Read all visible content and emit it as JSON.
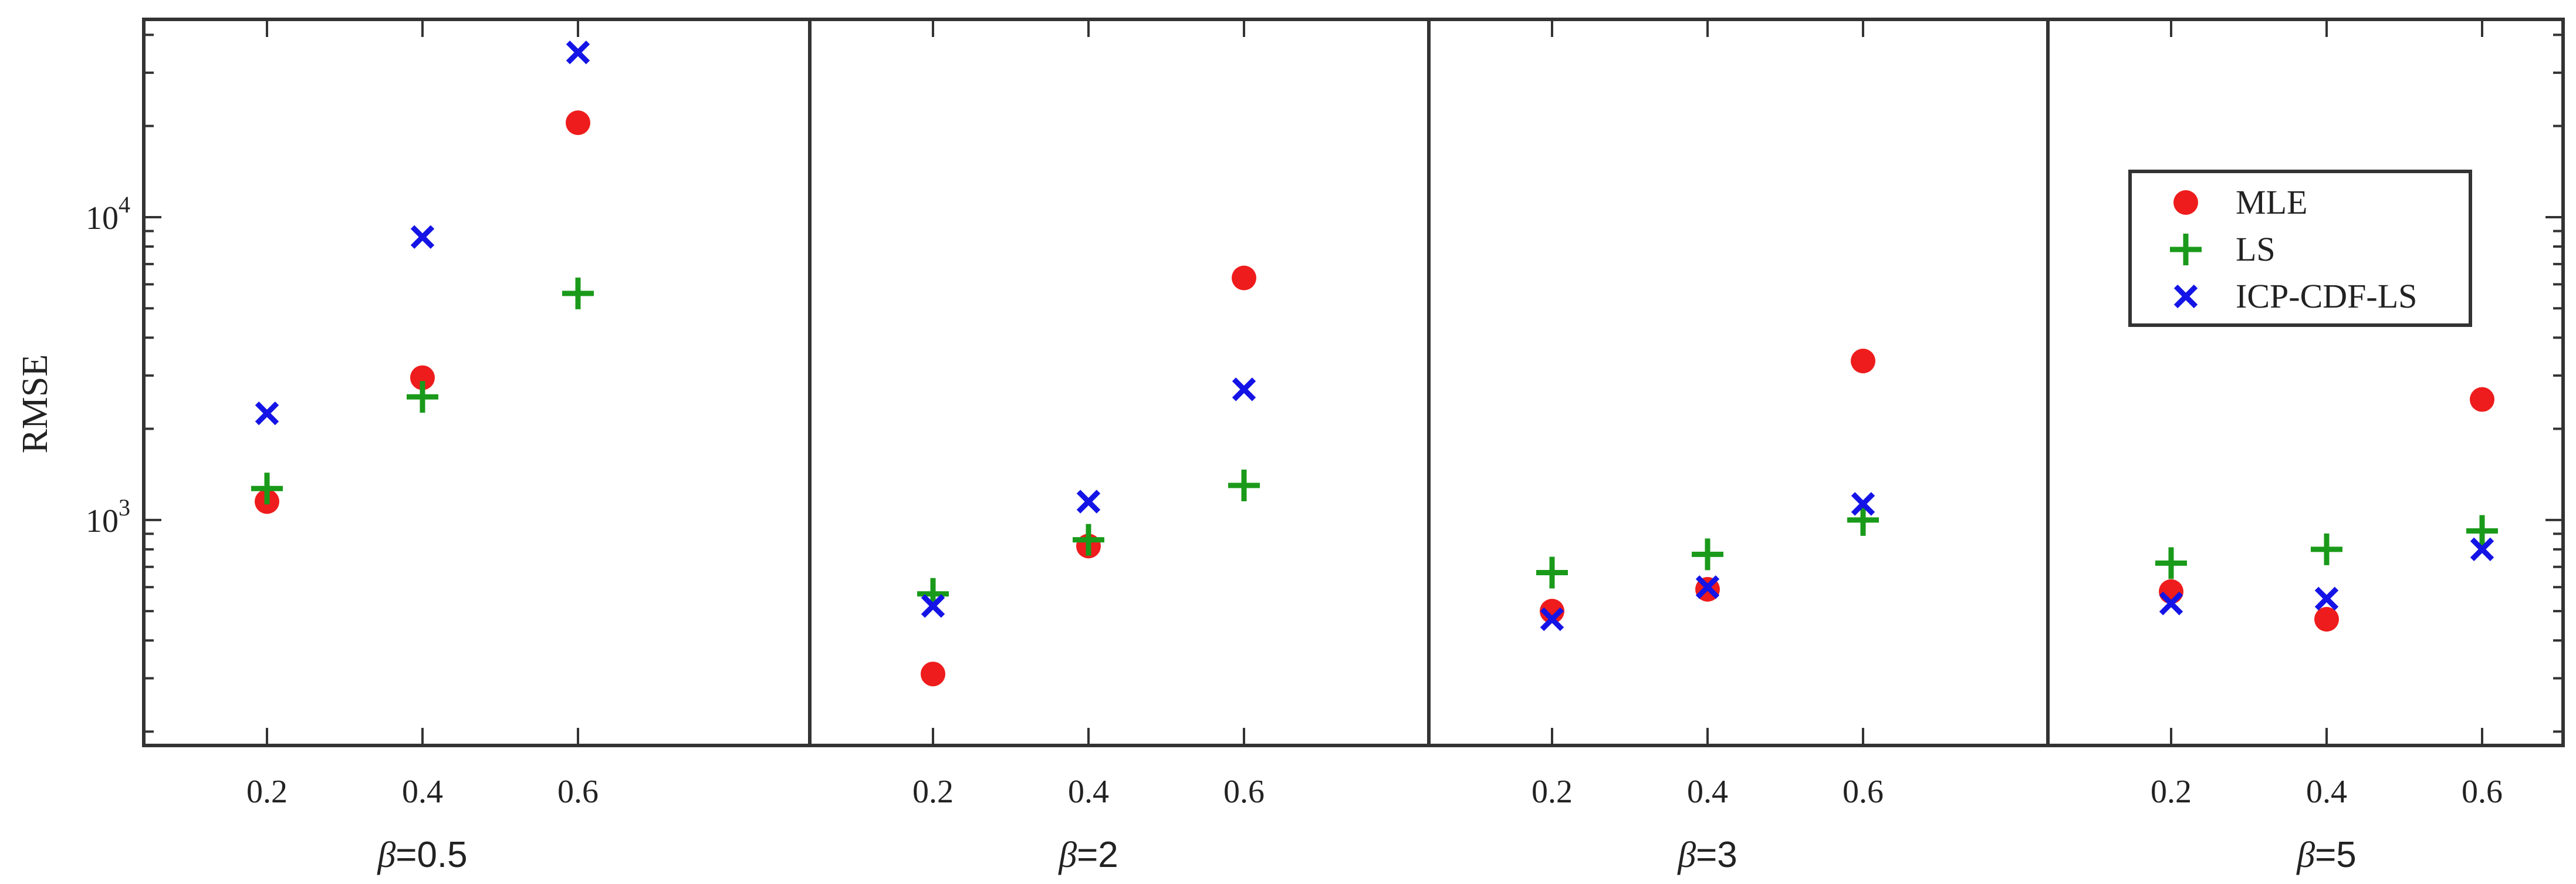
{
  "chart_data": {
    "type": "scatter",
    "ylabel": "RMSE",
    "yscale": "log",
    "ylim": [
      180,
      45000
    ],
    "y_ticks": [
      {
        "value": 1000,
        "base": "10",
        "exp": "3"
      },
      {
        "value": 10000,
        "base": "10",
        "exp": "4"
      }
    ],
    "x_ticks": [
      "0.2",
      "0.4",
      "0.6"
    ],
    "grid": false,
    "legend_position": "upper-right",
    "legend": [
      "MLE",
      "LS",
      "ICP-CDF-LS"
    ],
    "panels": [
      {
        "label_var": "β",
        "label_rest": "=0.5",
        "series": [
          {
            "name": "MLE",
            "x": [
              0.2,
              0.4,
              0.6
            ],
            "y": [
              1150,
              2950,
              20500
            ]
          },
          {
            "name": "LS",
            "x": [
              0.2,
              0.4,
              0.6
            ],
            "y": [
              1270,
              2550,
              5600
            ]
          },
          {
            "name": "ICP-CDF-LS",
            "x": [
              0.2,
              0.4,
              0.6
            ],
            "y": [
              2250,
              8600,
              35000
            ]
          }
        ]
      },
      {
        "label_var": "β",
        "label_rest": "=2",
        "series": [
          {
            "name": "MLE",
            "x": [
              0.2,
              0.4,
              0.6
            ],
            "y": [
              310,
              820,
              6300
            ]
          },
          {
            "name": "LS",
            "x": [
              0.2,
              0.4,
              0.6
            ],
            "y": [
              570,
              860,
              1300
            ]
          },
          {
            "name": "ICP-CDF-LS",
            "x": [
              0.2,
              0.4,
              0.6
            ],
            "y": [
              520,
              1150,
              2700
            ]
          }
        ]
      },
      {
        "label_var": "β",
        "label_rest": "=3",
        "series": [
          {
            "name": "MLE",
            "x": [
              0.2,
              0.4,
              0.6
            ],
            "y": [
              500,
              590,
              3350
            ]
          },
          {
            "name": "LS",
            "x": [
              0.2,
              0.4,
              0.6
            ],
            "y": [
              670,
              770,
              1000
            ]
          },
          {
            "name": "ICP-CDF-LS",
            "x": [
              0.2,
              0.4,
              0.6
            ],
            "y": [
              470,
              600,
              1130
            ]
          }
        ]
      },
      {
        "label_var": "β",
        "label_rest": "=5",
        "series": [
          {
            "name": "MLE",
            "x": [
              0.2,
              0.4,
              0.6
            ],
            "y": [
              580,
              470,
              2500
            ]
          },
          {
            "name": "LS",
            "x": [
              0.2,
              0.4,
              0.6
            ],
            "y": [
              720,
              800,
              920
            ]
          },
          {
            "name": "ICP-CDF-LS",
            "x": [
              0.2,
              0.4,
              0.6
            ],
            "y": [
              530,
              550,
              800
            ]
          }
        ]
      }
    ],
    "colors": {
      "MLE": "#ee1c1c",
      "LS": "#1a9a1a",
      "ICP-CDF-LS": "#1414e6"
    },
    "markers": {
      "MLE": "circle",
      "LS": "plus",
      "ICP-CDF-LS": "x"
    }
  }
}
